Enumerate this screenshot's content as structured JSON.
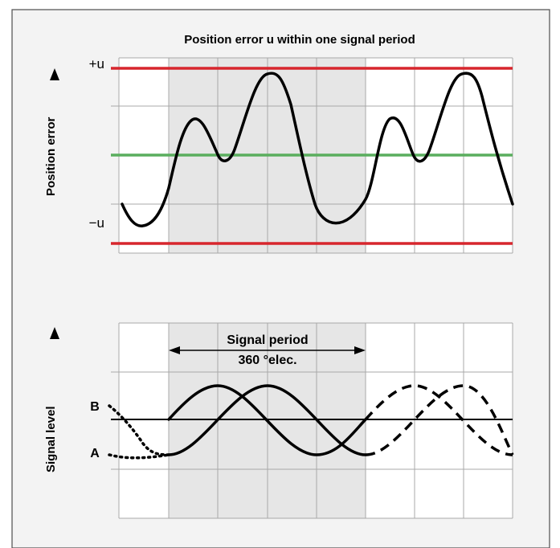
{
  "top_panel": {
    "title": "Position error u within one signal period",
    "y_axis_label": "Position error",
    "plus_label": "+u",
    "minus_label": "−u",
    "limit_color": "#d7262d",
    "zero_color": "#5aae5e",
    "curve_color": "#000000"
  },
  "bottom_panel": {
    "y_axis_label": "Signal level",
    "period_label_line1": "Signal period",
    "period_label_line2": "360 °elec.",
    "channel_b_label": "B",
    "channel_a_label": "A"
  },
  "colors": {
    "border": "#4d4d4d",
    "highlight": "#e6e6e6",
    "grid": "#a8a8a8"
  }
}
